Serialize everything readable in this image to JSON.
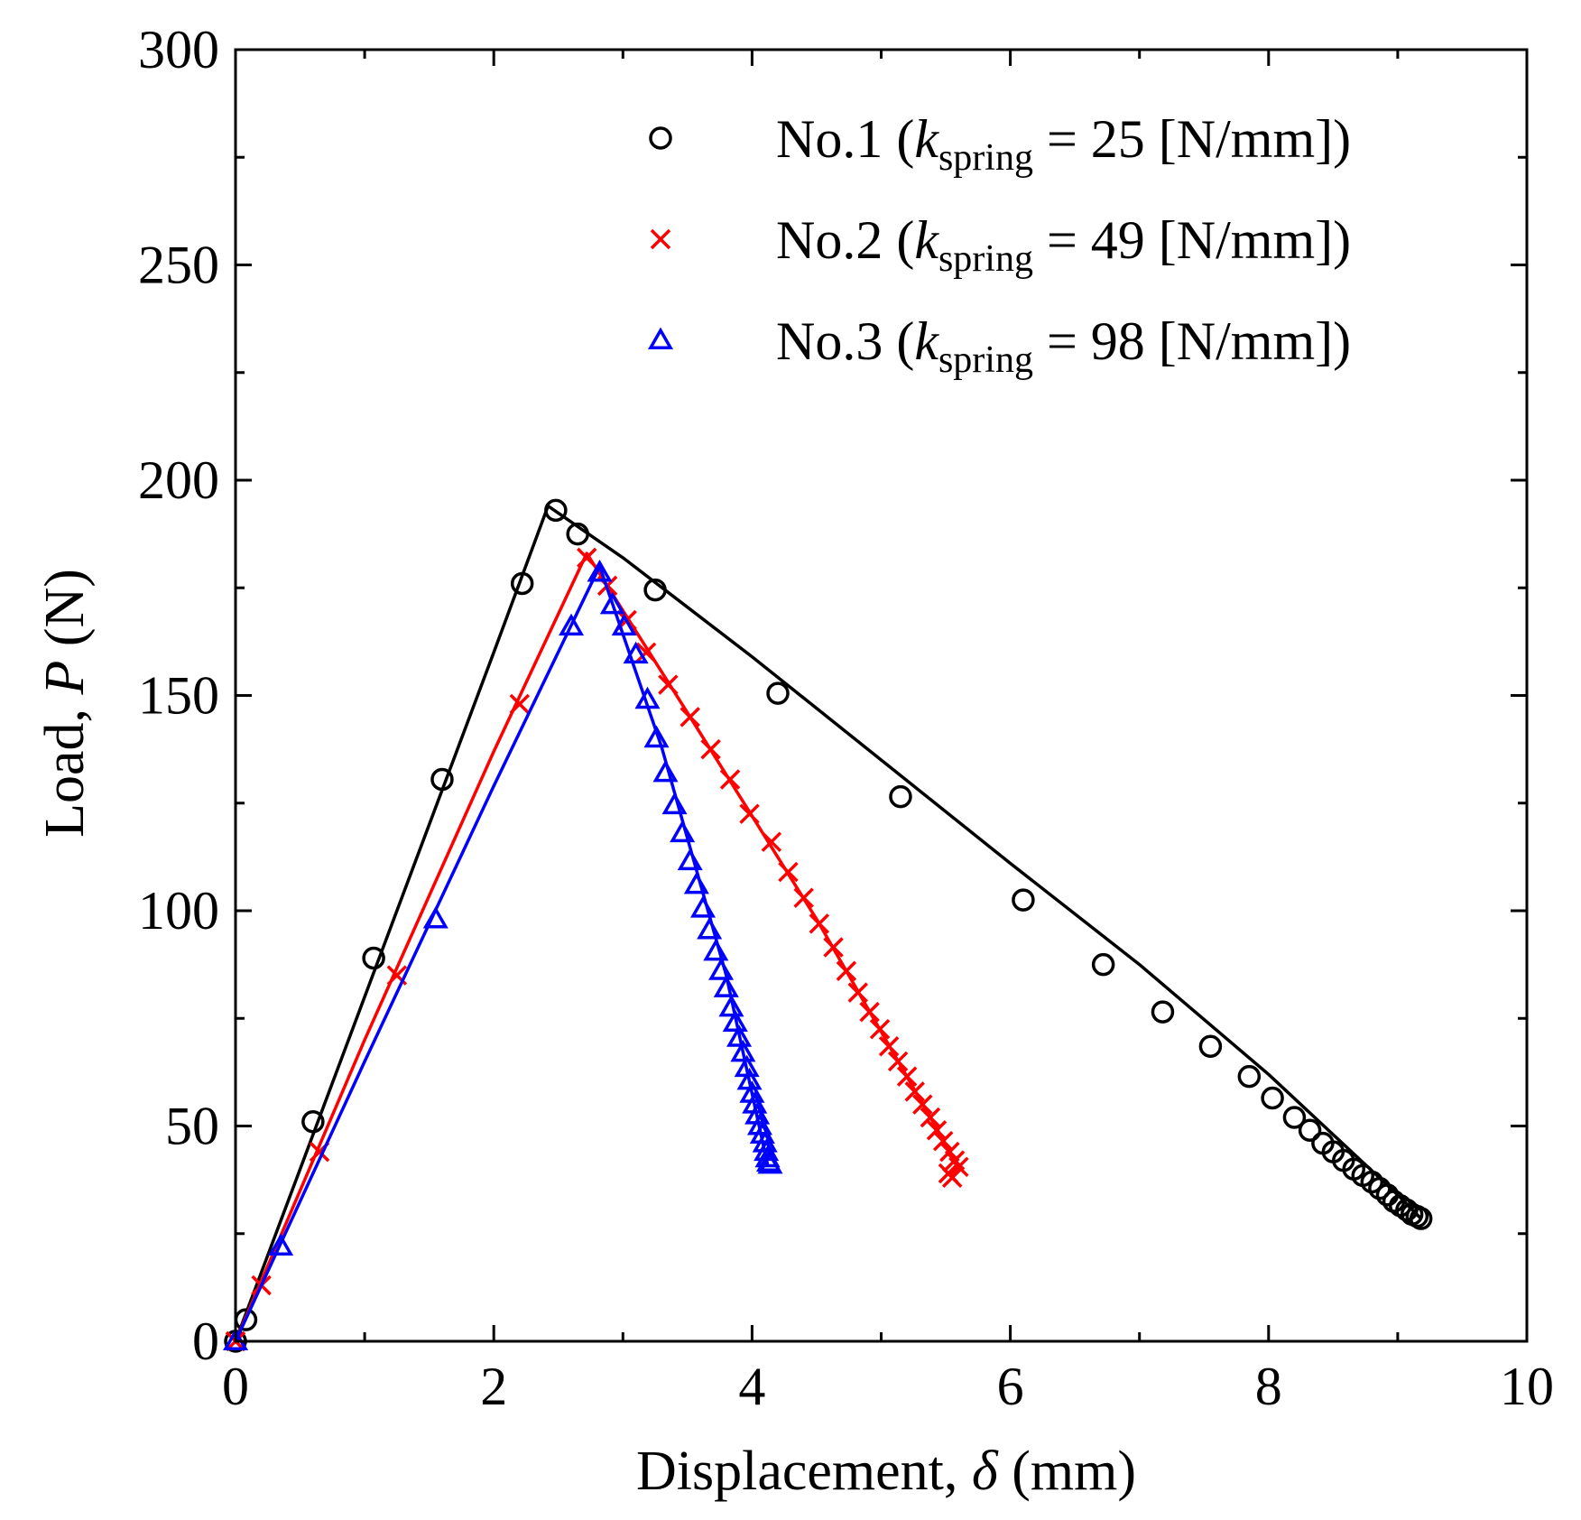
{
  "chart_data": {
    "type": "line",
    "title": "",
    "xlabel": {
      "prefix": "Displacement, ",
      "symbol": "δ",
      "suffix": " (mm)"
    },
    "ylabel": {
      "prefix": "Load, ",
      "symbol": "P",
      "suffix": " (N)"
    },
    "xlim": [
      0,
      10
    ],
    "ylim": [
      0,
      300
    ],
    "xticks": [
      0,
      2,
      4,
      6,
      8,
      10
    ],
    "yticks": [
      0,
      50,
      100,
      150,
      200,
      250,
      300
    ],
    "xtick_labels": [
      "0",
      "2",
      "4",
      "6",
      "8",
      "10"
    ],
    "ytick_labels": [
      "0",
      "50",
      "100",
      "150",
      "200",
      "250",
      "300"
    ],
    "grid": false,
    "legend_position": "top-right",
    "series": [
      {
        "name": "No.1",
        "legend": {
          "label": "No.1 (",
          "k": "k",
          "sub": "spring",
          "eq": " = 25 [N/mm])"
        },
        "color": "#000000",
        "marker": "circle",
        "line": [
          [
            0,
            0
          ],
          [
            0.5,
            40
          ],
          [
            1,
            80
          ],
          [
            1.5,
            120
          ],
          [
            2,
            160
          ],
          [
            2.42,
            194
          ],
          [
            3,
            182
          ],
          [
            4,
            159
          ],
          [
            5,
            135
          ],
          [
            6,
            111
          ],
          [
            7,
            87.5
          ],
          [
            8,
            62
          ],
          [
            9,
            34
          ],
          [
            9.18,
            28.5
          ]
        ],
        "points": [
          [
            0,
            0
          ],
          [
            0.08,
            5
          ],
          [
            0.6,
            51
          ],
          [
            1.07,
            89
          ],
          [
            1.6,
            130.5
          ],
          [
            2.22,
            176
          ],
          [
            2.48,
            193
          ],
          [
            2.65,
            187.5
          ],
          [
            3.25,
            174.5
          ],
          [
            4.2,
            150.5
          ],
          [
            5.15,
            126.5
          ],
          [
            6.1,
            102.5
          ],
          [
            6.72,
            87.5
          ],
          [
            7.18,
            76.5
          ],
          [
            7.55,
            68.5
          ],
          [
            7.85,
            61.5
          ],
          [
            8.03,
            56.5
          ],
          [
            8.2,
            52
          ],
          [
            8.32,
            49
          ],
          [
            8.42,
            46
          ],
          [
            8.5,
            44
          ],
          [
            8.58,
            42
          ],
          [
            8.66,
            40
          ],
          [
            8.73,
            38.5
          ],
          [
            8.8,
            37
          ],
          [
            8.86,
            35.5
          ],
          [
            8.92,
            34
          ],
          [
            8.97,
            32.5
          ],
          [
            9.02,
            31.5
          ],
          [
            9.07,
            30.5
          ],
          [
            9.11,
            29.5
          ],
          [
            9.15,
            29
          ],
          [
            9.18,
            28.5
          ]
        ]
      },
      {
        "name": "No.2",
        "legend": {
          "label": "No.2 (",
          "k": "k",
          "sub": "spring",
          "eq": " = 49 [N/mm])"
        },
        "color": "#ff0000",
        "marker": "x",
        "line": [
          [
            0,
            0
          ],
          [
            1,
            70
          ],
          [
            2,
            137
          ],
          [
            2.72,
            183
          ],
          [
            3.5,
            146
          ],
          [
            4.5,
            98
          ],
          [
            5.6,
            40.5
          ]
        ],
        "points": [
          [
            0,
            0
          ],
          [
            0.2,
            13
          ],
          [
            0.65,
            44
          ],
          [
            1.25,
            85
          ],
          [
            2.2,
            148
          ],
          [
            2.72,
            182
          ],
          [
            2.88,
            175.5
          ],
          [
            3.03,
            167.5
          ],
          [
            3.18,
            160
          ],
          [
            3.35,
            152.5
          ],
          [
            3.52,
            145
          ],
          [
            3.68,
            137.5
          ],
          [
            3.83,
            130.5
          ],
          [
            3.98,
            122.5
          ],
          [
            4.15,
            116
          ],
          [
            4.28,
            109
          ],
          [
            4.4,
            103
          ],
          [
            4.52,
            97
          ],
          [
            4.63,
            91.5
          ],
          [
            4.73,
            86
          ],
          [
            4.82,
            81
          ],
          [
            4.91,
            76.5
          ],
          [
            4.99,
            72.5
          ],
          [
            5.06,
            68.5
          ],
          [
            5.13,
            65
          ],
          [
            5.2,
            61.5
          ],
          [
            5.26,
            58
          ],
          [
            5.32,
            55
          ],
          [
            5.38,
            52
          ],
          [
            5.43,
            49
          ],
          [
            5.48,
            46.5
          ],
          [
            5.53,
            44
          ],
          [
            5.57,
            42
          ],
          [
            5.6,
            40.5
          ],
          [
            5.52,
            39
          ],
          [
            5.55,
            38
          ]
        ]
      },
      {
        "name": "No.3",
        "legend": {
          "label": "No.3 (",
          "k": "k",
          "sub": "spring",
          "eq": " = 98 [N/mm])"
        },
        "color": "#0000ff",
        "marker": "triangle",
        "line": [
          [
            0,
            0
          ],
          [
            1,
            65
          ],
          [
            2,
            129
          ],
          [
            2.82,
            180
          ],
          [
            3.3,
            138
          ],
          [
            3.8,
            85
          ],
          [
            4.12,
            41
          ]
        ],
        "points": [
          [
            0,
            0
          ],
          [
            0.35,
            22
          ],
          [
            1.55,
            98
          ],
          [
            2.6,
            166
          ],
          [
            2.82,
            178.5
          ],
          [
            2.92,
            171
          ],
          [
            3.01,
            166
          ],
          [
            3.1,
            159.5
          ],
          [
            3.19,
            149
          ],
          [
            3.26,
            140
          ],
          [
            3.33,
            132
          ],
          [
            3.4,
            124.5
          ],
          [
            3.46,
            118
          ],
          [
            3.52,
            111.5
          ],
          [
            3.57,
            106
          ],
          [
            3.62,
            100.5
          ],
          [
            3.67,
            95.5
          ],
          [
            3.72,
            90.5
          ],
          [
            3.76,
            86
          ],
          [
            3.8,
            82
          ],
          [
            3.84,
            77.5
          ],
          [
            3.87,
            74
          ],
          [
            3.9,
            70.5
          ],
          [
            3.93,
            67
          ],
          [
            3.96,
            63.5
          ],
          [
            3.98,
            60.5
          ],
          [
            4.0,
            57.5
          ],
          [
            4.02,
            55
          ],
          [
            4.04,
            52.5
          ],
          [
            4.06,
            50
          ],
          [
            4.08,
            48
          ],
          [
            4.1,
            46
          ],
          [
            4.11,
            44
          ],
          [
            4.12,
            42.5
          ],
          [
            4.13,
            41.5
          ],
          [
            4.14,
            41
          ]
        ]
      }
    ]
  }
}
